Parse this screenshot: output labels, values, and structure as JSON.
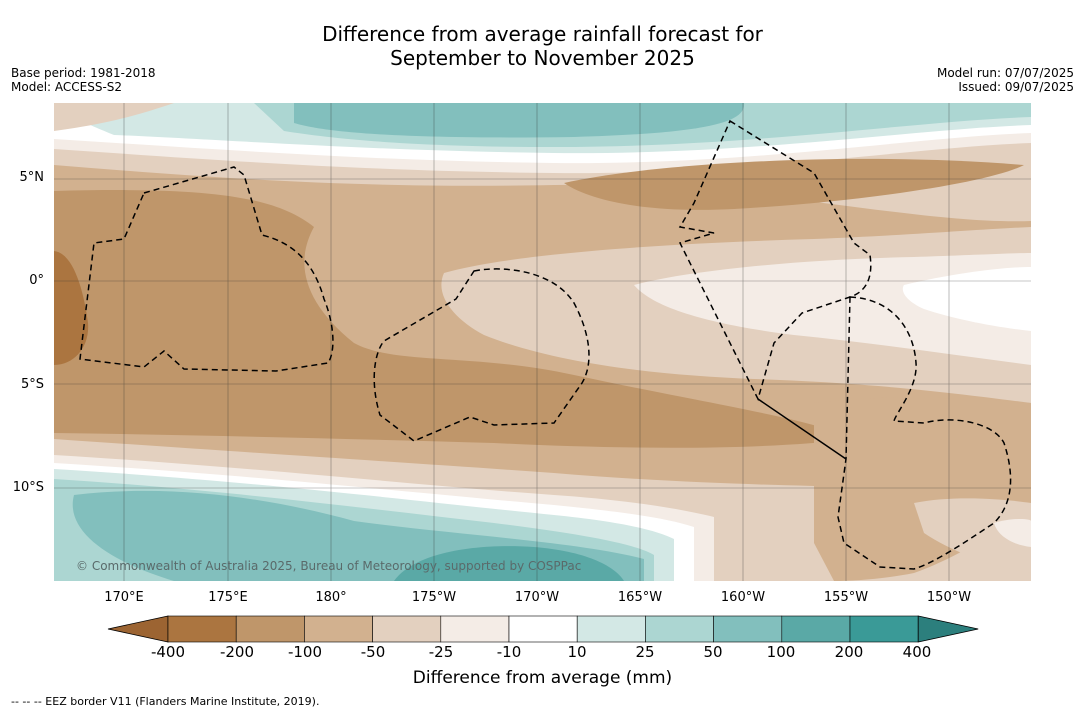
{
  "title": {
    "line1": "Difference from average rainfall forecast for",
    "line2": "September to November 2025"
  },
  "meta": {
    "base_period": "Base period: 1981-2018",
    "model": "Model: ACCESS-S2",
    "model_run": "Model run: 07/07/2025",
    "issued": "Issued: 09/07/2025"
  },
  "map": {
    "copyright": "© Commonwealth of Australia 2025, Bureau of Meteorology, supported by COSPPac",
    "lat_labels": [
      "5°N",
      "0°",
      "5°S",
      "10°S"
    ],
    "lon_labels": [
      "170°E",
      "175°E",
      "180°",
      "175°W",
      "170°W",
      "165°W",
      "160°W",
      "155°W",
      "150°W"
    ]
  },
  "legend": {
    "title": "Difference from average (mm)",
    "ticks": [
      "-400",
      "-200",
      "-100",
      "-50",
      "-25",
      "-10",
      "10",
      "25",
      "50",
      "100",
      "200",
      "400"
    ],
    "colors": [
      "#9c6432",
      "#ab7540",
      "#bf966a",
      "#d2b18f",
      "#e3d0bf",
      "#f4ece6",
      "#ffffff",
      "#d3e8e5",
      "#acd6d2",
      "#82bfbd",
      "#5aa9a6",
      "#3a9a97",
      "#2c7f7d"
    ]
  },
  "footer": {
    "eez": "--  --  -- EEZ border V11 (Flanders Marine Institute, 2019)."
  }
}
